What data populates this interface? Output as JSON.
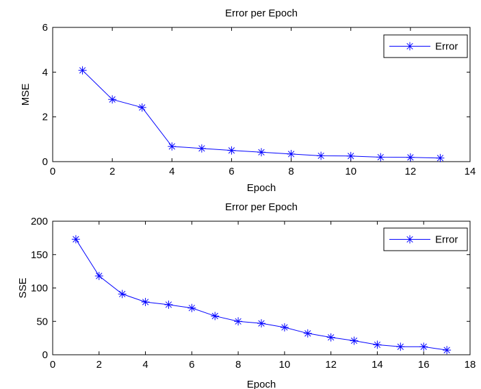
{
  "chart_data": [
    {
      "type": "line",
      "title": "Error per Epoch",
      "xlabel": "Epoch",
      "ylabel": "MSE",
      "xlim": [
        0,
        14
      ],
      "ylim": [
        0,
        6
      ],
      "xticks": [
        0,
        2,
        4,
        6,
        8,
        10,
        12,
        14
      ],
      "yticks": [
        0,
        2,
        4,
        6
      ],
      "grid": false,
      "legend": "top-right",
      "series": [
        {
          "name": "Error",
          "color": "#0000ff",
          "marker": "asterisk",
          "x": [
            1,
            2,
            3,
            4,
            5,
            6,
            7,
            8,
            9,
            10,
            11,
            12,
            13
          ],
          "y": [
            4.08,
            2.78,
            2.42,
            0.68,
            0.59,
            0.5,
            0.42,
            0.34,
            0.26,
            0.25,
            0.2,
            0.19,
            0.16
          ]
        }
      ]
    },
    {
      "type": "line",
      "title": "Error per Epoch",
      "xlabel": "Epoch",
      "ylabel": "SSE",
      "xlim": [
        0,
        18
      ],
      "ylim": [
        0,
        200
      ],
      "xticks": [
        0,
        2,
        4,
        6,
        8,
        10,
        12,
        14,
        16,
        18
      ],
      "yticks": [
        0,
        50,
        100,
        150,
        200
      ],
      "grid": false,
      "legend": "top-right",
      "series": [
        {
          "name": "Error",
          "color": "#0000ff",
          "marker": "asterisk",
          "x": [
            1,
            2,
            3,
            4,
            5,
            6,
            7,
            8,
            9,
            10,
            11,
            12,
            13,
            14,
            15,
            16,
            17
          ],
          "y": [
            173,
            118,
            91,
            79,
            75,
            70,
            58,
            50,
            47,
            41,
            32,
            26,
            21,
            15,
            12,
            12,
            7
          ]
        }
      ]
    }
  ]
}
